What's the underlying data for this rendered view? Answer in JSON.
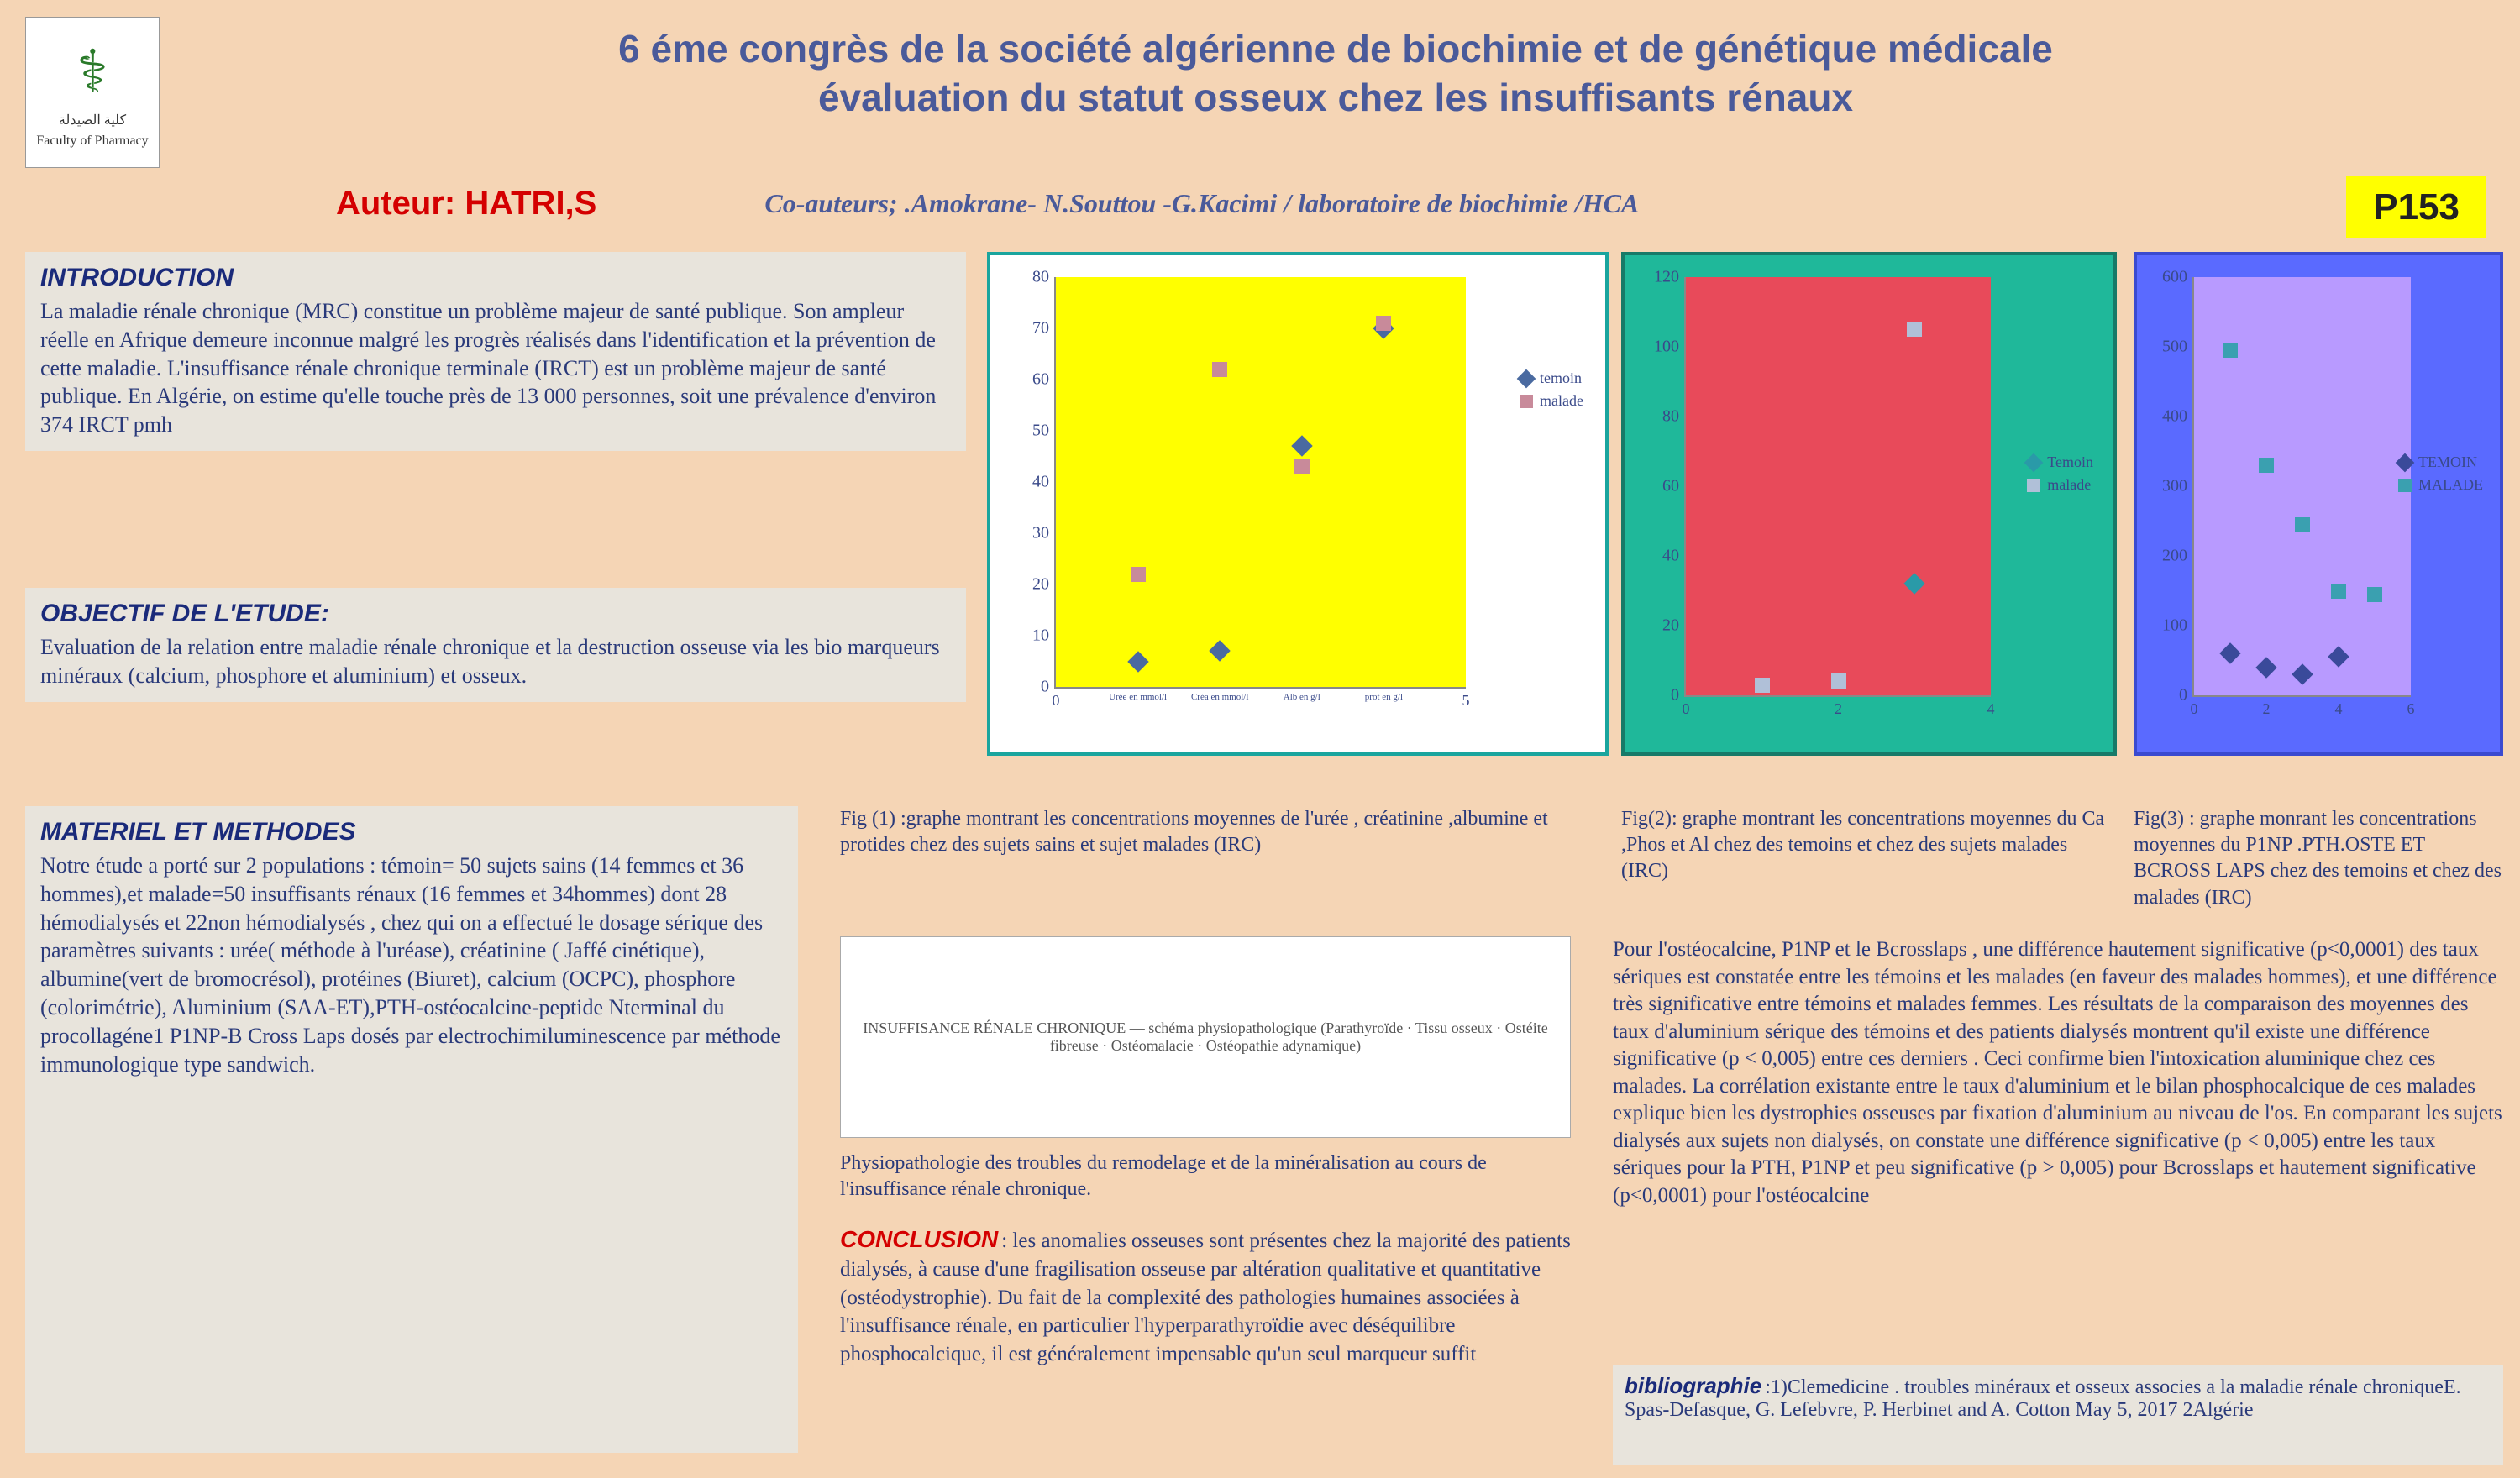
{
  "logo": {
    "caption": "Faculty of Pharmacy",
    "arabic": "كلية الصيدلة"
  },
  "title": {
    "line1": "6 éme congrès de la société algérienne de biochimie et de génétique médicale",
    "line2": "évaluation du statut osseux chez les insuffisants rénaux"
  },
  "author_label": "Auteur: HATRI,S",
  "coauthors": "Co-auteurs;  .Amokrane- N.Souttou -G.Kacimi / laboratoire de biochimie /HCA",
  "poster_number": "P153",
  "intro": {
    "title": "INTRODUCTION",
    "body": "La maladie rénale chronique (MRC) constitue un problème majeur de santé publique. Son ampleur réelle en Afrique demeure inconnue malgré les progrès réalisés dans l'identification et la prévention de cette maladie. L'insuffisance rénale chronique terminale (IRCT) est un problème majeur de santé publique. En Algérie, on estime qu'elle touche près de 13 000 personnes, soit une prévalence d'environ 374 IRCT pmh"
  },
  "objectif": {
    "title": "OBJECTIF DE L'ETUDE:",
    "body": "Evaluation de la relation entre maladie rénale chronique et la destruction osseuse via les bio marqueurs minéraux (calcium, phosphore et aluminium) et osseux."
  },
  "materiel": {
    "title": "MATERIEL ET METHODES",
    "body": " Notre étude a porté sur 2 populations : témoin= 50 sujets sains (14 femmes et 36 hommes),et malade=50 insuffisants rénaux (16 femmes et 34hommes) dont 28 hémodialysés et 22non hémodialysés , chez qui on a effectué le dosage sérique des paramètres suivants : urée( méthode à l'uréase), créatinine ( Jaffé cinétique), albumine(vert de bromocrésol), protéines (Biuret), calcium (OCPC), phosphore (colorimétrie), Aluminium (SAA-ET),PTH-ostéocalcine-peptide Nterminal du procollagéne1 P1NP-B Cross Laps dosés par electrochimiluminescence par méthode immunologique type sandwich."
  },
  "fig1_caption": "Fig (1) :graphe montrant les concentrations moyennes de l'urée , créatinine ,albumine et protides chez des sujets sains et sujet malades (IRC)",
  "fig2_caption": "Fig(2): graphe montrant les concentrations moyennes du Ca ,Phos et Al chez des temoins et chez des sujets malades (IRC)",
  "fig3_caption": "Fig(3) : graphe monrant les concentrations moyennes du P1NP .PTH.OSTE ET BCROSS LAPS chez des temoins et chez des malades  (IRC)",
  "physio_caption": "Physiopathologie des troubles du remodelage et de la minéralisation au cours de l'insuffisance rénale chronique.",
  "diagram_placeholder": "INSUFFISANCE RÉNALE CHRONIQUE — schéma physiopathologique (Parathyroïde · Tissu osseux · Ostéite fibreuse · Ostéomalacie · Ostéopathie adynamique)",
  "conclusion": {
    "title": "CONCLUSION",
    "body": " : les anomalies osseuses sont présentes chez la majorité des patients dialysés, à cause d'une fragilisation osseuse par altération qualitative et quantitative (ostéodystrophie). Du fait de la complexité des pathologies humaines associées à l'insuffisance rénale, en particulier l'hyperparathyroïdie avec déséquilibre phosphocalcique, il est généralement impensable qu'un seul marqueur suffit"
  },
  "results_body": "Pour l'ostéocalcine, P1NP et le Bcrosslaps , une différence hautement significative (p<0,0001) des taux sériques est constatée entre les témoins et les malades (en faveur des malades hommes), et une différence très significative entre témoins et malades femmes. Les résultats de la comparaison des moyennes des taux d'aluminium sérique des témoins et des patients dialysés montrent qu'il existe une différence significative (p < 0,005) entre ces derniers . Ceci confirme bien l'intoxication aluminique chez ces malades. La corrélation existante entre le taux d'aluminium et le bilan phosphocalcique de ces malades explique bien les dystrophies osseuses par fixation d'aluminium au niveau de l'os. En comparant les sujets dialysés aux sujets non dialysés, on constate une différence significative (p < 0,005) entre les taux sériques pour la PTH, P1NP et peu significative (p > 0,005) pour Bcrosslaps et hautement significative (p<0,0001) pour l'ostéocalcine",
  "biblio": {
    "title": "bibliographie",
    "body": " :1)Clemedicine . troubles minéraux et osseux associes a la maladie rénale chroniqueE. Spas-Defasque, G. Lefebvre, P. Herbinet and A. Cotton May 5, 2017 2Algérie"
  },
  "chart1": {
    "type": "scatter",
    "frame_bg": "#ffffff",
    "frame_border": "#1aa59e",
    "plot_bg": "#ffff00",
    "yticks": [
      0,
      10,
      20,
      30,
      40,
      50,
      60,
      70,
      80
    ],
    "ylim": [
      0,
      80
    ],
    "xticks": [
      0,
      5
    ],
    "xlabels_small": [
      "Urée en mmol/l",
      "Créa en mmol/l",
      "Alb en g/l",
      "prot en g/l"
    ],
    "legend": [
      {
        "label": "temoin",
        "shape": "diamond",
        "color": "#4a6aa0"
      },
      {
        "label": "malade",
        "shape": "square",
        "color": "#c88a9a"
      }
    ],
    "series": {
      "temoin": {
        "shape": "diamond",
        "color": "#4a6aa0",
        "points": [
          [
            1,
            5
          ],
          [
            2,
            7
          ],
          [
            3,
            47
          ],
          [
            4,
            70
          ]
        ]
      },
      "malade": {
        "shape": "square",
        "color": "#c88a9a",
        "points": [
          [
            1,
            22
          ],
          [
            2,
            62
          ],
          [
            3,
            43
          ],
          [
            4,
            71
          ]
        ]
      }
    }
  },
  "chart2": {
    "type": "scatter",
    "frame_bg": "#1fb89a",
    "frame_border": "#177a68",
    "plot_bg": "#e84a5a",
    "yticks": [
      0,
      20,
      40,
      60,
      80,
      100,
      120
    ],
    "ylim": [
      0,
      120
    ],
    "xticks": [
      0,
      2,
      4
    ],
    "legend": [
      {
        "label": "Temoin",
        "shape": "diamond",
        "color": "#2a9aa8"
      },
      {
        "label": "malade",
        "shape": "square",
        "color": "#b0c0d8"
      }
    ],
    "series": {
      "temoin": {
        "shape": "diamond",
        "color": "#2a9aa8",
        "points": [
          [
            3,
            32
          ]
        ]
      },
      "malade": {
        "shape": "square",
        "color": "#b0c0d8",
        "points": [
          [
            1,
            3
          ],
          [
            2,
            4
          ],
          [
            3,
            105
          ]
        ]
      }
    }
  },
  "chart3": {
    "type": "scatter",
    "frame_bg": "#5a6aff",
    "frame_border": "#3a4ad0",
    "plot_bg": "#b89aff",
    "yticks": [
      0,
      100,
      200,
      300,
      400,
      500,
      600
    ],
    "ylim": [
      0,
      600
    ],
    "xticks": [
      0,
      2,
      4,
      6
    ],
    "legend": [
      {
        "label": "TEMOIN",
        "shape": "diamond",
        "color": "#3a4a9a"
      },
      {
        "label": "MALADE",
        "shape": "square",
        "color": "#3aa0b0"
      }
    ],
    "series": {
      "temoin": {
        "shape": "diamond",
        "color": "#3a4a9a",
        "points": [
          [
            1,
            60
          ],
          [
            2,
            40
          ],
          [
            3,
            30
          ],
          [
            4,
            55
          ]
        ]
      },
      "malade": {
        "shape": "square",
        "color": "#3aa0b0",
        "points": [
          [
            1,
            495
          ],
          [
            2,
            330
          ],
          [
            3,
            245
          ],
          [
            4,
            150
          ],
          [
            5,
            145
          ]
        ]
      }
    }
  }
}
